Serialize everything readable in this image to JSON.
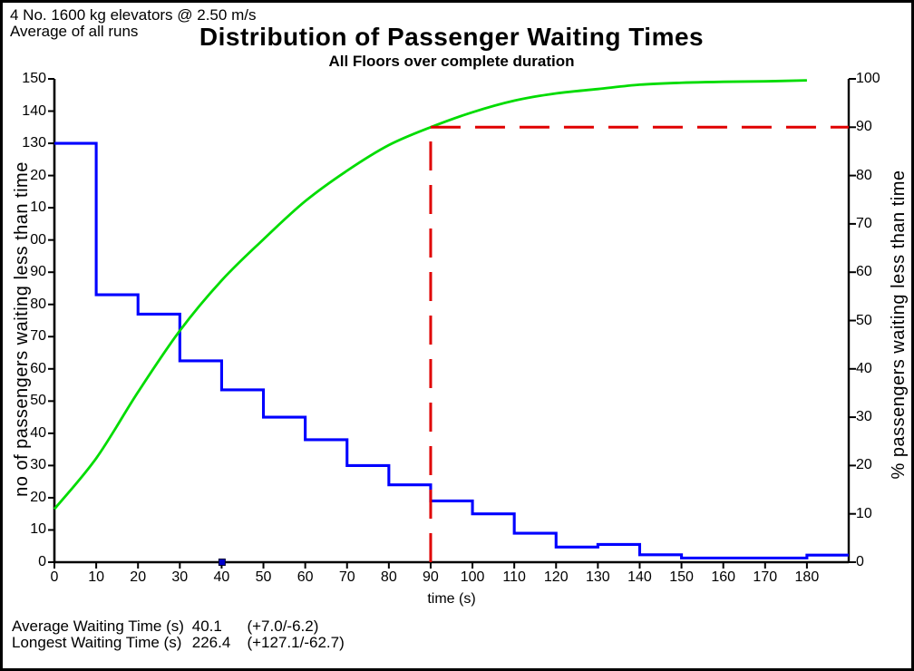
{
  "header": {
    "info_line1": "4 No. 1600 kg elevators @ 2.50 m/s",
    "info_line2": "Average of all runs",
    "title": "Distribution of Passenger Waiting Times",
    "subtitle": "All Floors over complete duration"
  },
  "chart_data": {
    "type": "line",
    "title": "Distribution of Passenger Waiting Times",
    "subtitle": "All Floors over complete duration",
    "grid": false,
    "legend": "none",
    "x_axis": {
      "label": "time (s)",
      "min": 0,
      "max": 190,
      "tick_step": 10,
      "ticks": [
        {
          "v": 0,
          "label": "0"
        },
        {
          "v": 10,
          "label": "10"
        },
        {
          "v": 20,
          "label": "20"
        },
        {
          "v": 30,
          "label": "30"
        },
        {
          "v": 40,
          "label": "40"
        },
        {
          "v": 50,
          "label": "50"
        },
        {
          "v": 60,
          "label": "60"
        },
        {
          "v": 70,
          "label": "70"
        },
        {
          "v": 80,
          "label": "80"
        },
        {
          "v": 90,
          "label": "90"
        },
        {
          "v": 100,
          "label": "100"
        },
        {
          "v": 110,
          "label": "110"
        },
        {
          "v": 120,
          "label": "120"
        },
        {
          "v": 130,
          "label": "130"
        },
        {
          "v": 140,
          "label": "140"
        },
        {
          "v": 150,
          "label": "150"
        },
        {
          "v": 160,
          "label": "160"
        },
        {
          "v": 170,
          "label": "170"
        },
        {
          "v": 180,
          "label": "180"
        }
      ]
    },
    "y_axis_left": {
      "label": "no of passengers waiting less than time",
      "min": 0,
      "max": 150,
      "tick_step": 10,
      "note_rendered_labels": "hundreds digit of 100,110,120 hidden under rotated axis title in source image",
      "ticks": [
        {
          "v": 0,
          "label": "0"
        },
        {
          "v": 10,
          "label": "10"
        },
        {
          "v": 20,
          "label": "20"
        },
        {
          "v": 30,
          "label": "30"
        },
        {
          "v": 40,
          "label": "40"
        },
        {
          "v": 50,
          "label": "50"
        },
        {
          "v": 60,
          "label": "60"
        },
        {
          "v": 70,
          "label": "70"
        },
        {
          "v": 80,
          "label": "80"
        },
        {
          "v": 90,
          "label": "90"
        },
        {
          "v": 100,
          "label": "00"
        },
        {
          "v": 110,
          "label": "10"
        },
        {
          "v": 120,
          "label": "20"
        },
        {
          "v": 130,
          "label": "130"
        },
        {
          "v": 140,
          "label": "140"
        },
        {
          "v": 150,
          "label": "150"
        }
      ]
    },
    "y_axis_right": {
      "label": "% passengers waiting less than time",
      "min": 0,
      "max": 100,
      "tick_step": 10,
      "ticks": [
        {
          "v": 0,
          "label": "0"
        },
        {
          "v": 10,
          "label": "10"
        },
        {
          "v": 20,
          "label": "20"
        },
        {
          "v": 30,
          "label": "30"
        },
        {
          "v": 40,
          "label": "40"
        },
        {
          "v": 50,
          "label": "50"
        },
        {
          "v": 60,
          "label": "60"
        },
        {
          "v": 70,
          "label": "70"
        },
        {
          "v": 80,
          "label": "80"
        },
        {
          "v": 90,
          "label": "90"
        },
        {
          "v": 100,
          "label": "100"
        }
      ]
    },
    "series": [
      {
        "name": "no of passengers waiting less than time (10 s bins)",
        "type": "step",
        "axis": "left",
        "color": "#0000FF",
        "bin_width": 10,
        "bin_starts": [
          0,
          10,
          20,
          30,
          40,
          50,
          60,
          70,
          80,
          90,
          100,
          110,
          120,
          130,
          140,
          150,
          160,
          170,
          180
        ],
        "values": [
          130,
          83,
          77,
          62.5,
          53.5,
          45,
          38,
          30,
          24,
          19,
          15,
          9,
          4.7,
          5.5,
          2.3,
          1.3,
          1.3,
          1.3,
          2.2
        ]
      },
      {
        "name": "% passengers waiting less than time (cumulative)",
        "type": "line",
        "axis": "right",
        "color": "#00DC00",
        "points": [
          [
            0,
            11
          ],
          [
            10,
            21.5
          ],
          [
            20,
            35.2
          ],
          [
            30,
            47.9
          ],
          [
            40,
            58.3
          ],
          [
            50,
            66.8
          ],
          [
            60,
            74.7
          ],
          [
            70,
            81
          ],
          [
            80,
            86.3
          ],
          [
            90,
            90
          ],
          [
            100,
            93.1
          ],
          [
            110,
            95.5
          ],
          [
            120,
            97
          ],
          [
            130,
            97.9
          ],
          [
            140,
            98.8
          ],
          [
            150,
            99.2
          ],
          [
            160,
            99.4
          ],
          [
            170,
            99.5
          ],
          [
            180,
            99.7
          ]
        ]
      }
    ],
    "reference_lines": [
      {
        "orientation": "vertical",
        "x": 90,
        "style": "dashed",
        "color": "#E00000"
      },
      {
        "orientation": "horizontal",
        "y_right": 90,
        "from_x": 90,
        "style": "dashed",
        "color": "#E00000"
      }
    ],
    "markers": [
      {
        "shape": "square",
        "x": 40.1,
        "y_left": 0,
        "color": "#0000CC"
      }
    ]
  },
  "footer": {
    "rows": [
      {
        "label": "Average Waiting Time (s)",
        "value": "40.1",
        "range": "(+7.0/-6.2)"
      },
      {
        "label": "Longest Waiting Time (s)",
        "value": "226.4",
        "range": "(+127.1/-62.7)"
      }
    ]
  }
}
